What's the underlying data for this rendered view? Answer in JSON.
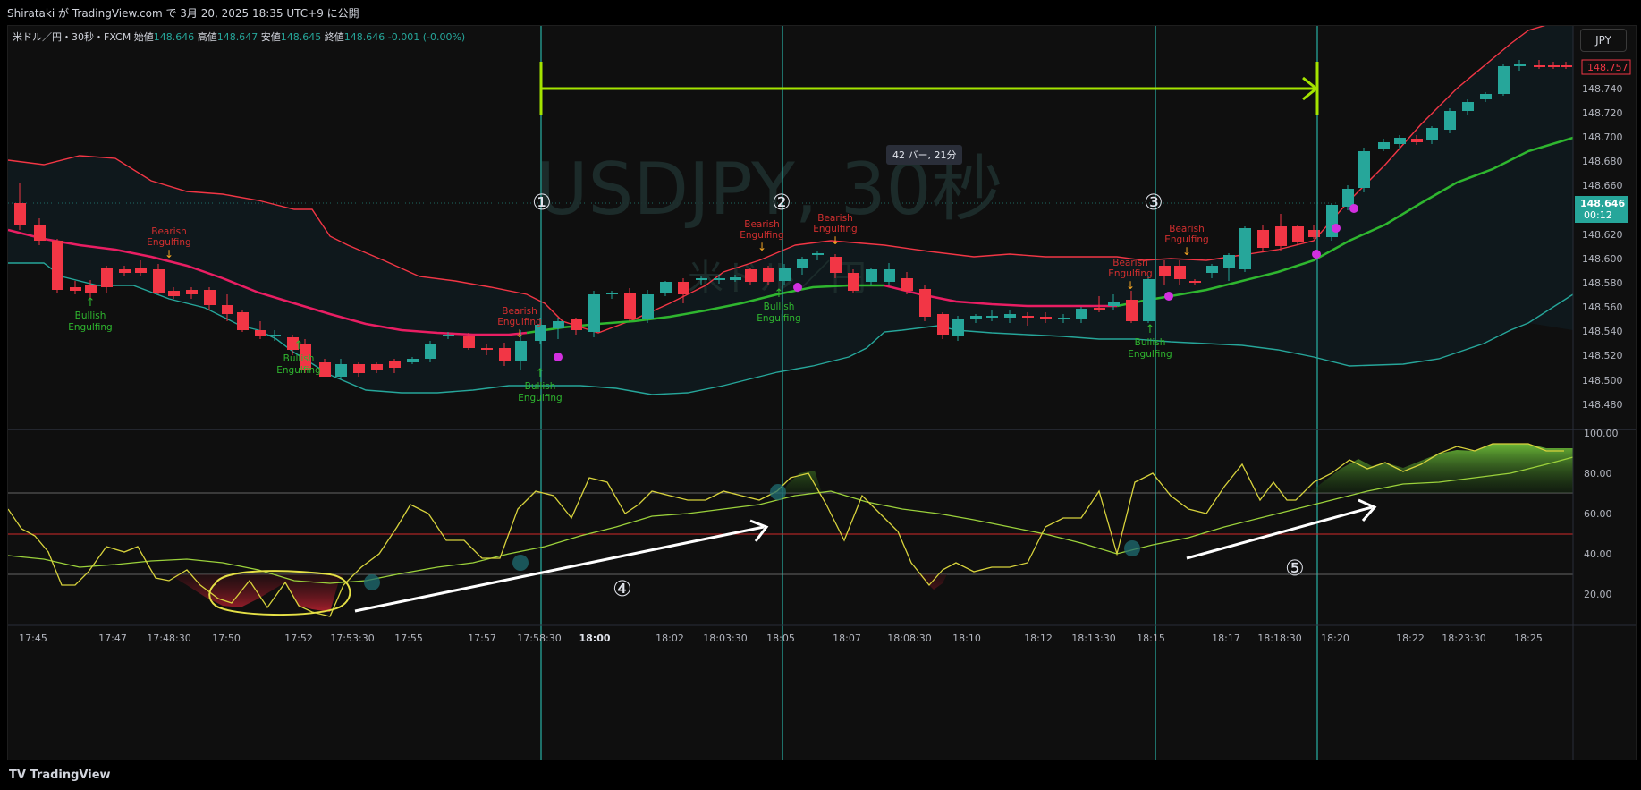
{
  "header": {
    "published_by": "Shirataki が TradingView.com で 3月 20, 2025 18:35 UTC+9 に公開"
  },
  "legend": {
    "symbol": "米ドル／円・30秒・FXCM",
    "open_label": "始値",
    "open": "148.646",
    "high_label": "高値",
    "high": "148.647",
    "low_label": "安値",
    "low": "148.645",
    "close_label": "終値",
    "close": "148.646",
    "change": "-0.001 (-0.00%)"
  },
  "currency_button": "JPY",
  "watermark": {
    "main": "USDJPY, 30秒",
    "sub": "米ドル／円"
  },
  "measure_tooltip": "42 バー, 21分",
  "price_labels": {
    "current_red": "148.757",
    "current_green": "148.646",
    "countdown": "00:12"
  },
  "price_axis": [
    "148.740",
    "148.720",
    "148.700",
    "148.680",
    "148.660",
    "148.620",
    "148.600",
    "148.580",
    "148.560",
    "148.540",
    "148.520",
    "148.500",
    "148.480"
  ],
  "osc_axis": [
    "100.00",
    "80.00",
    "60.00",
    "40.00",
    "20.00"
  ],
  "time_axis": [
    "17:45",
    "17:47",
    "17:48:30",
    "17:50",
    "17:52",
    "17:53:30",
    "17:55",
    "17:57",
    "17:58:30",
    "18:00",
    "18:02",
    "18:03:30",
    "18:05",
    "18:07",
    "18:08:30",
    "18:10",
    "18:12",
    "18:13:30",
    "18:15",
    "18:17",
    "18:18:30",
    "18:20",
    "18:22",
    "18:23:30",
    "18:25"
  ],
  "markers": {
    "circled_numbers": [
      "①",
      "②",
      "③",
      "④",
      "⑤"
    ],
    "bullish": "Bullish",
    "engulfing": "Engulfing",
    "bearish": "Bearish",
    "engulfing_bear": "Engulfing"
  },
  "footer": {
    "brand": "TradingView"
  },
  "colors": {
    "up": "#26a69a",
    "down": "#f23645",
    "upper_band": "#f23645",
    "lower_band": "#26a69a",
    "ema_red": "#e91e63",
    "ema_green": "#2fb62f",
    "vline": "#26a69a",
    "measure": "#a4e400",
    "rsi": "#d7d23c",
    "rsi_ma": "#9bd13b"
  }
}
